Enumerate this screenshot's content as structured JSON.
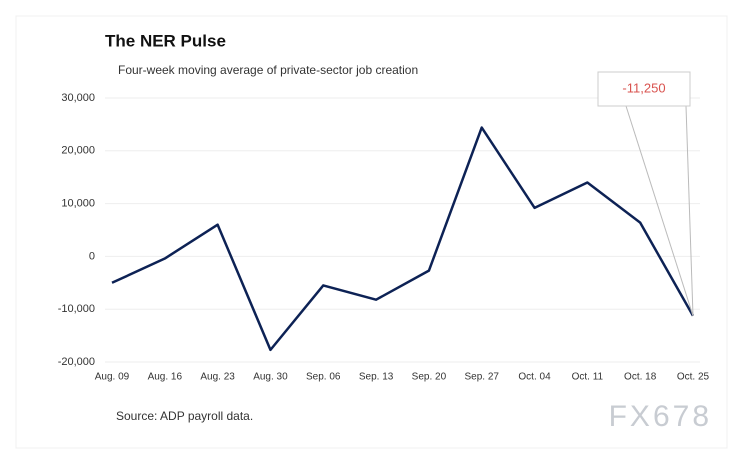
{
  "chart_data": {
    "type": "line",
    "title": "The NER Pulse",
    "subtitle": "Four-week moving average of private-sector job creation",
    "categories": [
      "Aug. 09",
      "Aug. 16",
      "Aug. 23",
      "Aug. 30",
      "Sep. 06",
      "Sep. 13",
      "Sep. 20",
      "Sep. 27",
      "Oct. 04",
      "Oct. 11",
      "Oct. 18",
      "Oct. 25"
    ],
    "series": [
      {
        "name": "Four-week moving average",
        "color": "#0d2255",
        "values": [
          -5000,
          -400,
          6000,
          -17700,
          -5500,
          -8200,
          -2700,
          24400,
          9200,
          14000,
          6400,
          -11250
        ],
        "value_labels": [
          null,
          null,
          null,
          null,
          null,
          null,
          null,
          null,
          null,
          null,
          null,
          "-11,250"
        ]
      }
    ],
    "ylim": [
      -20000,
      30000
    ],
    "yticks": [
      {
        "value": -20000,
        "label": "-20,000"
      },
      {
        "value": -10000,
        "label": "-10,000"
      },
      0,
      {
        "value": 10000,
        "label": "10,000"
      },
      {
        "value": 20000,
        "label": "20,000"
      },
      {
        "value": 30000,
        "label": "30,000"
      }
    ],
    "grid": true,
    "source": "Source: ADP payroll data.",
    "watermark": "FX678"
  }
}
